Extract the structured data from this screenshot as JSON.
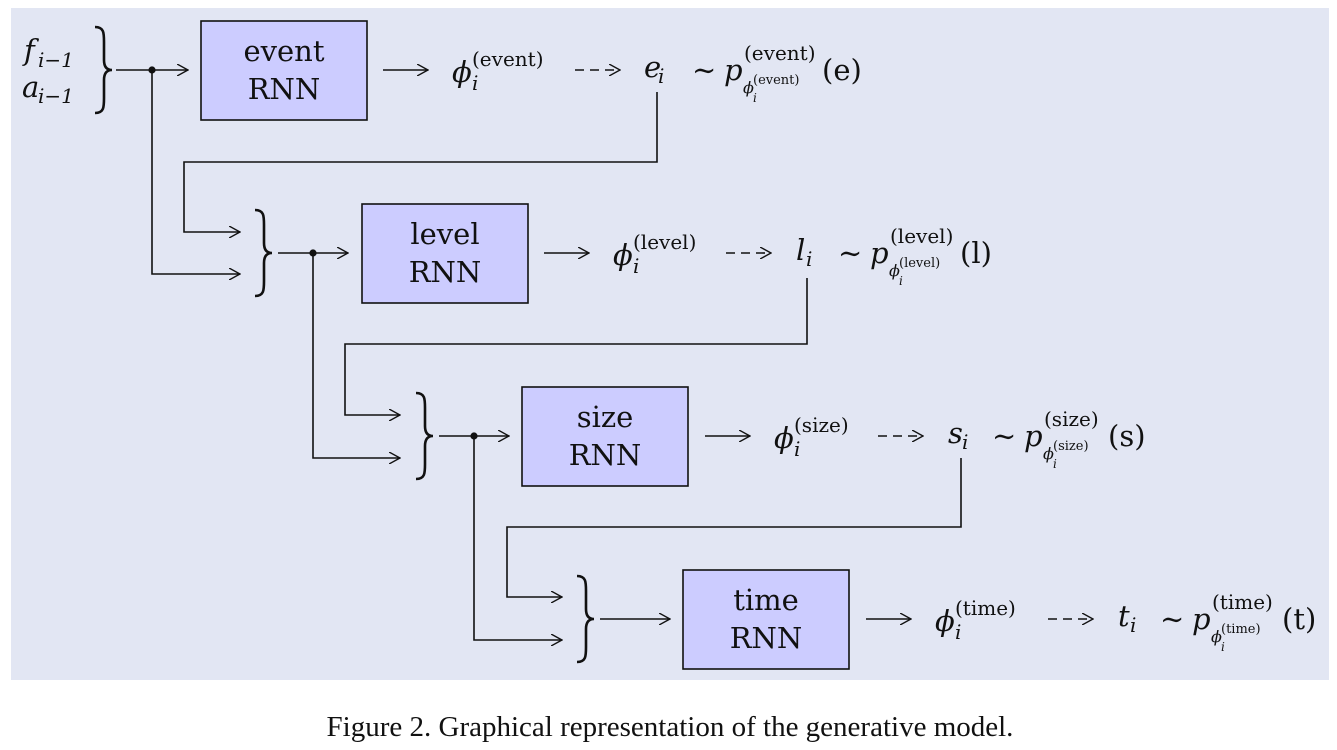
{
  "input": {
    "f": "f",
    "f_sub": "i−1",
    "a": "a",
    "a_sub": "i−1"
  },
  "stages": [
    {
      "name": "event",
      "rnn_label": "RNN",
      "phi": "ϕ",
      "phi_sub": "i",
      "phi_sup": "(event)",
      "var": "e",
      "var_sub": "i",
      "dist_p": "p",
      "dist_sup": "(event)",
      "dist_sub_phi": "ϕ",
      "dist_sub_i": "i",
      "dist_sub_sup": "(event)",
      "dist_arg": "(e)"
    },
    {
      "name": "level",
      "rnn_label": "RNN",
      "phi": "ϕ",
      "phi_sub": "i",
      "phi_sup": "(level)",
      "var": "l",
      "var_sub": "i",
      "dist_p": "p",
      "dist_sup": "(level)",
      "dist_sub_phi": "ϕ",
      "dist_sub_i": "i",
      "dist_sub_sup": "(level)",
      "dist_arg": "(l)"
    },
    {
      "name": "size",
      "rnn_label": "RNN",
      "phi": "ϕ",
      "phi_sub": "i",
      "phi_sup": "(size)",
      "var": "s",
      "var_sub": "i",
      "dist_p": "p",
      "dist_sup": "(size)",
      "dist_sub_phi": "ϕ",
      "dist_sub_i": "i",
      "dist_sub_sup": "(size)",
      "dist_arg": "(s)"
    },
    {
      "name": "time",
      "rnn_label": "RNN",
      "phi": "ϕ",
      "phi_sub": "i",
      "phi_sup": "(time)",
      "var": "t",
      "var_sub": "i",
      "dist_p": "p",
      "dist_sup": "(time)",
      "dist_sub_phi": "ϕ",
      "dist_sub_i": "i",
      "dist_sub_sup": "(time)",
      "dist_arg": "(t)"
    }
  ],
  "tilde": "∼",
  "caption": "Figure 2.  Graphical representation of the generative model.",
  "colors": {
    "panel_bg": "#e2e6f3",
    "box_fill": "#ccccff",
    "stroke": "#111111",
    "page_bg": "#ffffff"
  }
}
